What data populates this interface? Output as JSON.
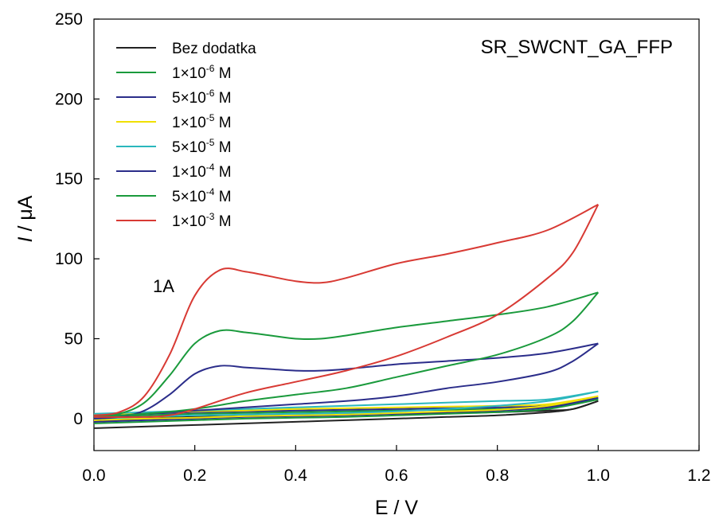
{
  "chart_data": {
    "type": "line",
    "xlabel": "E / V",
    "ylabel": {
      "italic": "I",
      "rest": " / μA"
    },
    "xlim": [
      0.0,
      1.2
    ],
    "ylim": [
      -20,
      250
    ],
    "xticks": [
      "0.0",
      "0.2",
      "0.4",
      "0.6",
      "0.8",
      "1.0",
      "1.2"
    ],
    "yticks": [
      "0",
      "50",
      "100",
      "150",
      "200",
      "250"
    ],
    "grid": false,
    "legend_position": "top-left",
    "annotations": [
      {
        "text": "SR_SWCNT_GA_FFP",
        "position": "top-right"
      },
      {
        "text": "1A",
        "x": 0.2,
        "y": 85
      }
    ],
    "series": [
      {
        "name": "Bez dodatka",
        "base": "1×10",
        "exp": "",
        "unit": "",
        "color": "#222222",
        "forward": [
          [
            0,
            -6
          ],
          [
            0.1,
            -5
          ],
          [
            0.2,
            -4
          ],
          [
            0.3,
            -3
          ],
          [
            0.4,
            -2
          ],
          [
            0.5,
            -1
          ],
          [
            0.6,
            0
          ],
          [
            0.7,
            1
          ],
          [
            0.8,
            2
          ],
          [
            0.9,
            4
          ],
          [
            0.95,
            6
          ],
          [
            1.0,
            11
          ]
        ],
        "reverse": [
          [
            1.0,
            11
          ],
          [
            0.95,
            6
          ],
          [
            0.9,
            5
          ],
          [
            0.8,
            4
          ],
          [
            0.7,
            3.5
          ],
          [
            0.6,
            3
          ],
          [
            0.5,
            2.5
          ],
          [
            0.4,
            2
          ],
          [
            0.3,
            1.5
          ],
          [
            0.2,
            1
          ],
          [
            0.1,
            0
          ],
          [
            0.0,
            -2
          ]
        ]
      },
      {
        "name": "1×10⁻⁶ M",
        "base": "1×10",
        "exp": "-6",
        "unit": " M",
        "color": "#1a9a3c",
        "forward": [
          [
            0,
            -3
          ],
          [
            0.1,
            -2
          ],
          [
            0.2,
            -1
          ],
          [
            0.3,
            0
          ],
          [
            0.4,
            0.5
          ],
          [
            0.5,
            1
          ],
          [
            0.6,
            2
          ],
          [
            0.7,
            3
          ],
          [
            0.8,
            4
          ],
          [
            0.9,
            6
          ],
          [
            1.0,
            12
          ]
        ],
        "reverse": [
          [
            1.0,
            12
          ],
          [
            0.9,
            7
          ],
          [
            0.8,
            6
          ],
          [
            0.7,
            5.5
          ],
          [
            0.6,
            5
          ],
          [
            0.5,
            4.5
          ],
          [
            0.4,
            4
          ],
          [
            0.3,
            3.5
          ],
          [
            0.2,
            3
          ],
          [
            0.1,
            2
          ],
          [
            0.0,
            1
          ]
        ]
      },
      {
        "name": "5×10⁻⁶ M",
        "base": "5×10",
        "exp": "-6",
        "unit": " M",
        "color": "#2b2d8a",
        "forward": [
          [
            0,
            -2
          ],
          [
            0.1,
            -1
          ],
          [
            0.2,
            0
          ],
          [
            0.3,
            1
          ],
          [
            0.4,
            1.5
          ],
          [
            0.5,
            2
          ],
          [
            0.6,
            3
          ],
          [
            0.7,
            4
          ],
          [
            0.8,
            5
          ],
          [
            0.9,
            7
          ],
          [
            1.0,
            13
          ]
        ],
        "reverse": [
          [
            1.0,
            13
          ],
          [
            0.9,
            8
          ],
          [
            0.8,
            7
          ],
          [
            0.7,
            6.5
          ],
          [
            0.6,
            6
          ],
          [
            0.5,
            5.5
          ],
          [
            0.4,
            5
          ],
          [
            0.3,
            4.5
          ],
          [
            0.2,
            4
          ],
          [
            0.1,
            3
          ],
          [
            0.0,
            2
          ]
        ]
      },
      {
        "name": "1×10⁻⁵ M",
        "base": "1×10",
        "exp": "-5",
        "unit": " M",
        "color": "#f0e000",
        "forward": [
          [
            0,
            -1
          ],
          [
            0.1,
            0
          ],
          [
            0.2,
            0.5
          ],
          [
            0.3,
            1.5
          ],
          [
            0.4,
            2
          ],
          [
            0.5,
            2.5
          ],
          [
            0.6,
            3.5
          ],
          [
            0.7,
            4.5
          ],
          [
            0.8,
            5.5
          ],
          [
            0.9,
            8
          ],
          [
            1.0,
            14
          ]
        ],
        "reverse": [
          [
            1.0,
            14
          ],
          [
            0.9,
            9
          ],
          [
            0.8,
            8
          ],
          [
            0.7,
            7.5
          ],
          [
            0.6,
            7
          ],
          [
            0.5,
            6.5
          ],
          [
            0.4,
            6
          ],
          [
            0.3,
            5
          ],
          [
            0.2,
            4.5
          ],
          [
            0.1,
            3.5
          ],
          [
            0.0,
            2.5
          ]
        ]
      },
      {
        "name": "5×10⁻⁵ M",
        "base": "5×10",
        "exp": "-5",
        "unit": " M",
        "color": "#2ab7bd",
        "forward": [
          [
            0,
            0
          ],
          [
            0.1,
            1
          ],
          [
            0.2,
            2
          ],
          [
            0.3,
            2.5
          ],
          [
            0.4,
            3
          ],
          [
            0.5,
            3.5
          ],
          [
            0.6,
            4.5
          ],
          [
            0.7,
            6
          ],
          [
            0.8,
            8
          ],
          [
            0.9,
            11
          ],
          [
            1.0,
            17
          ]
        ],
        "reverse": [
          [
            1.0,
            17
          ],
          [
            0.9,
            12
          ],
          [
            0.8,
            11
          ],
          [
            0.7,
            10
          ],
          [
            0.6,
            9
          ],
          [
            0.5,
            8
          ],
          [
            0.4,
            7
          ],
          [
            0.3,
            6
          ],
          [
            0.2,
            5
          ],
          [
            0.1,
            4
          ],
          [
            0.0,
            3
          ]
        ]
      },
      {
        "name": "1×10⁻⁴ M",
        "base": "1×10",
        "exp": "-4",
        "unit": " M",
        "color": "#2b2d8a",
        "forward": [
          [
            0,
            0
          ],
          [
            0.05,
            1
          ],
          [
            0.1,
            5
          ],
          [
            0.15,
            15
          ],
          [
            0.2,
            28
          ],
          [
            0.25,
            33
          ],
          [
            0.3,
            32
          ],
          [
            0.35,
            31
          ],
          [
            0.4,
            30
          ],
          [
            0.45,
            30
          ],
          [
            0.5,
            31
          ],
          [
            0.6,
            34
          ],
          [
            0.7,
            36
          ],
          [
            0.8,
            38
          ],
          [
            0.9,
            41
          ],
          [
            1.0,
            47
          ]
        ],
        "reverse": [
          [
            1.0,
            47
          ],
          [
            0.95,
            36
          ],
          [
            0.9,
            29
          ],
          [
            0.8,
            23
          ],
          [
            0.7,
            19
          ],
          [
            0.6,
            14
          ],
          [
            0.5,
            11
          ],
          [
            0.4,
            9
          ],
          [
            0.3,
            7
          ],
          [
            0.2,
            5
          ],
          [
            0.1,
            3
          ],
          [
            0.0,
            1
          ]
        ]
      },
      {
        "name": "5×10⁻⁴ M",
        "base": "5×10",
        "exp": "-4",
        "unit": " M",
        "color": "#1a9a3c",
        "forward": [
          [
            0,
            1
          ],
          [
            0.05,
            3
          ],
          [
            0.1,
            10
          ],
          [
            0.15,
            27
          ],
          [
            0.2,
            47
          ],
          [
            0.25,
            55
          ],
          [
            0.3,
            54
          ],
          [
            0.35,
            52
          ],
          [
            0.4,
            50
          ],
          [
            0.45,
            50
          ],
          [
            0.5,
            52
          ],
          [
            0.6,
            57
          ],
          [
            0.7,
            61
          ],
          [
            0.8,
            65
          ],
          [
            0.9,
            70
          ],
          [
            1.0,
            79
          ]
        ],
        "reverse": [
          [
            1.0,
            79
          ],
          [
            0.95,
            61
          ],
          [
            0.9,
            51
          ],
          [
            0.8,
            40
          ],
          [
            0.7,
            33
          ],
          [
            0.6,
            26
          ],
          [
            0.5,
            19
          ],
          [
            0.4,
            15
          ],
          [
            0.3,
            11
          ],
          [
            0.2,
            6
          ],
          [
            0.1,
            3
          ],
          [
            0.0,
            1
          ]
        ]
      },
      {
        "name": "1×10⁻³ M",
        "base": "1×10",
        "exp": "-3",
        "unit": " M",
        "color": "#d83a34",
        "forward": [
          [
            0,
            2
          ],
          [
            0.05,
            4
          ],
          [
            0.1,
            14
          ],
          [
            0.15,
            40
          ],
          [
            0.2,
            77
          ],
          [
            0.25,
            93
          ],
          [
            0.3,
            92
          ],
          [
            0.35,
            89
          ],
          [
            0.4,
            86
          ],
          [
            0.45,
            85
          ],
          [
            0.5,
            88
          ],
          [
            0.6,
            97
          ],
          [
            0.7,
            103
          ],
          [
            0.8,
            110
          ],
          [
            0.9,
            118
          ],
          [
            1.0,
            134
          ]
        ],
        "reverse": [
          [
            1.0,
            134
          ],
          [
            0.95,
            104
          ],
          [
            0.9,
            88
          ],
          [
            0.8,
            65
          ],
          [
            0.7,
            51
          ],
          [
            0.6,
            39
          ],
          [
            0.5,
            30
          ],
          [
            0.4,
            23
          ],
          [
            0.3,
            16
          ],
          [
            0.2,
            6
          ],
          [
            0.15,
            2
          ],
          [
            0.1,
            1
          ],
          [
            0.0,
            1
          ]
        ]
      }
    ]
  }
}
